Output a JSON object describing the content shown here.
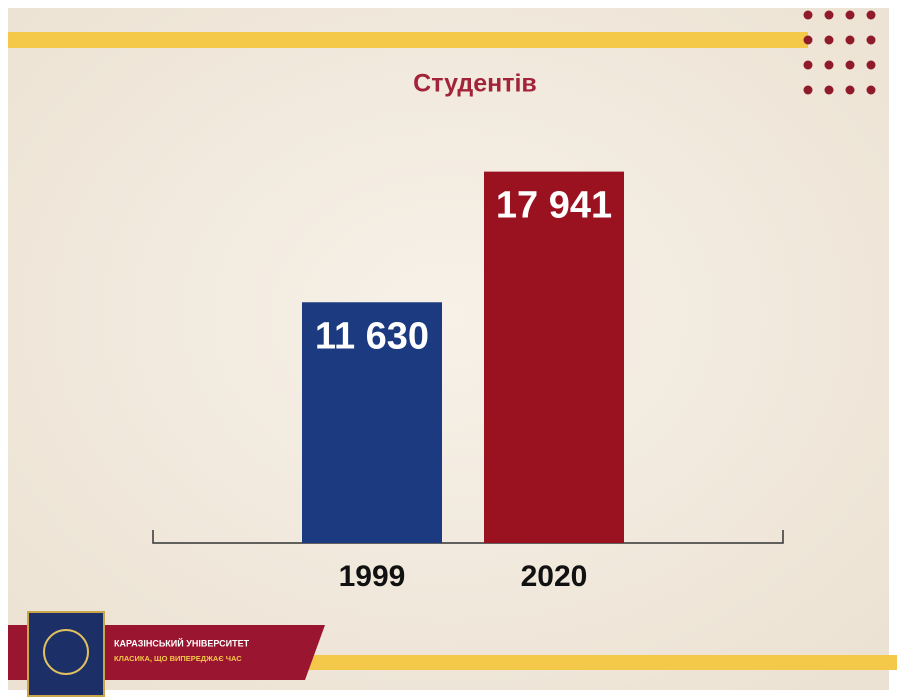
{
  "chart_data": {
    "type": "bar",
    "title": "Студентів",
    "categories": [
      "1999",
      "2020"
    ],
    "values": [
      11630,
      17941
    ],
    "value_labels": [
      "11 630",
      "17 941"
    ],
    "colors": [
      "#1b3a80",
      "#9a1220"
    ],
    "ylim": [
      0,
      20000
    ]
  },
  "footer": {
    "name": "КАРАЗІНСЬКИЙ УНІВЕРСИТЕТ",
    "motto": "КЛАСИКА, ЩО ВИПЕРЕДЖАЄ ЧАС"
  }
}
